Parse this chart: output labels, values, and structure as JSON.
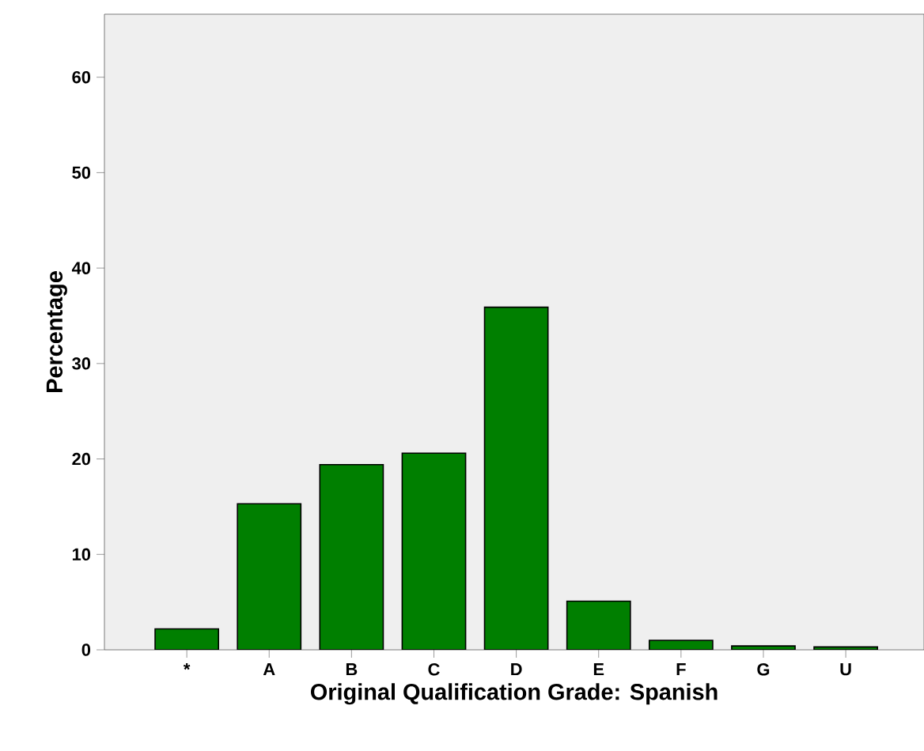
{
  "chart_data": {
    "type": "bar",
    "xlabel": "Original Qualification Grade: Spanish",
    "ylabel": "Percentage",
    "categories": [
      "*",
      "A",
      "B",
      "C",
      "D",
      "E",
      "F",
      "G",
      "U"
    ],
    "values": [
      2.2,
      15.3,
      19.4,
      20.6,
      35.9,
      5.1,
      1.0,
      0.4,
      0.3
    ],
    "color": "#007f00",
    "ylim": [
      0,
      66.6
    ],
    "yticks": [
      0,
      10,
      20,
      30,
      40,
      50,
      60
    ],
    "grid": false
  }
}
